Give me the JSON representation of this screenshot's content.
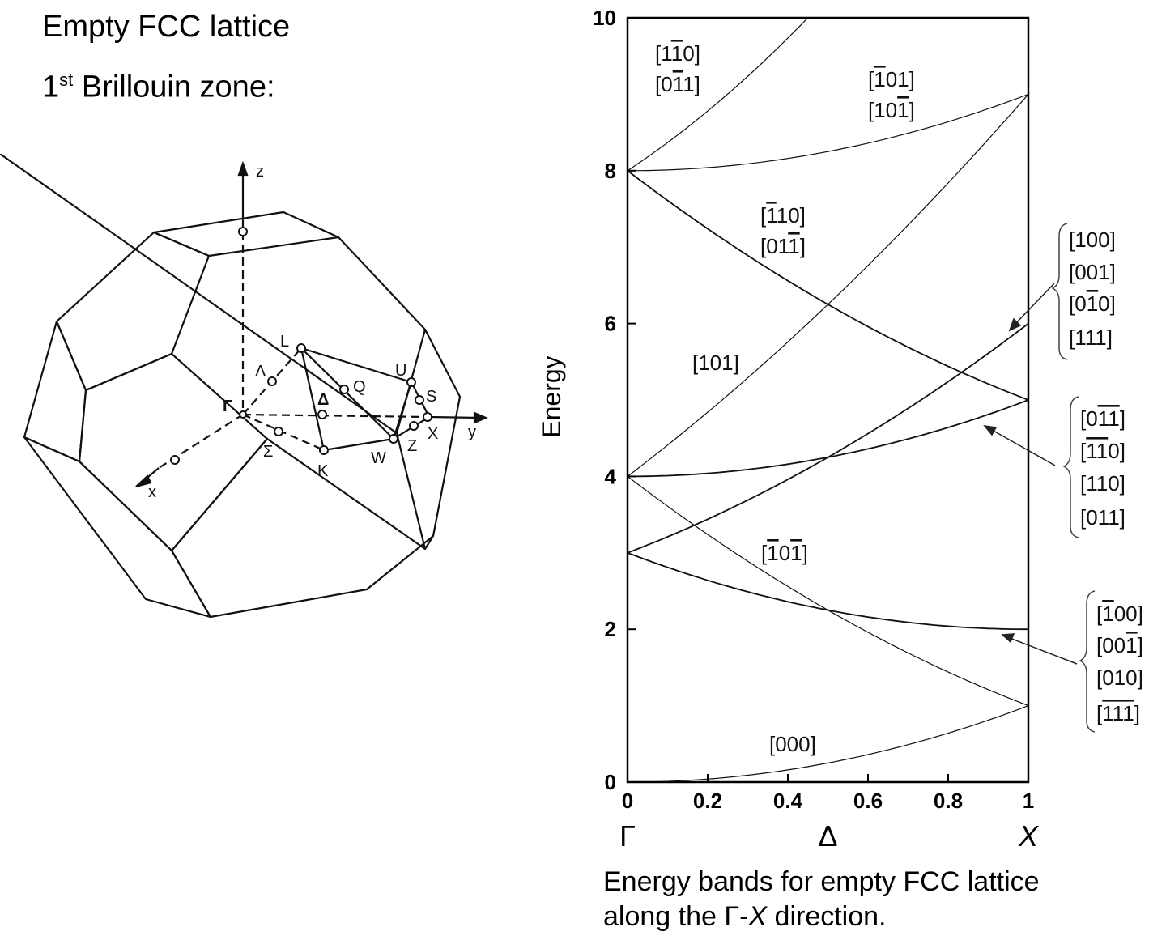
{
  "header": {
    "title": "Empty FCC lattice",
    "subtitle_prefix": "1",
    "subtitle_sup": "st",
    "subtitle_rest": " Brillouin zone:"
  },
  "bz_labels": {
    "z": "z",
    "y": "y",
    "x": "x",
    "gamma": "Γ",
    "lambda": "Λ",
    "L": "L",
    "delta": "Δ",
    "Q": "Q",
    "U": "U",
    "S": "S",
    "X": "X",
    "Z": "Z",
    "W": "W",
    "K": "K",
    "sigma": "Σ"
  },
  "chart_data": {
    "type": "line",
    "title": "",
    "xlabel": "",
    "ylabel": "Energy",
    "xlim": [
      0,
      1
    ],
    "ylim": [
      0,
      10
    ],
    "x_ticks": [
      "0",
      "0.2",
      "0.4",
      "0.6",
      "0.8",
      "1"
    ],
    "y_ticks": [
      "0",
      "2",
      "4",
      "6",
      "8",
      "10"
    ],
    "k_points": [
      {
        "label": "Γ",
        "x": 0
      },
      {
        "label": "Δ",
        "x": 0.5
      },
      {
        "label": "X",
        "x": 1
      }
    ],
    "series": [
      {
        "name": "[000]",
        "points": [
          [
            0,
            0
          ],
          [
            0.2,
            0.04
          ],
          [
            0.4,
            0.16
          ],
          [
            0.6,
            0.36
          ],
          [
            0.8,
            0.64
          ],
          [
            1,
            1
          ]
        ]
      },
      {
        "name": "[-10-1]",
        "points": [
          [
            0,
            4
          ],
          [
            0.5,
            2.25
          ],
          [
            1,
            1
          ]
        ]
      },
      {
        "name": "[-100],[00-1],[010],[-1-1-1]",
        "points": [
          [
            0,
            3
          ],
          [
            0.5,
            2.25
          ],
          [
            1,
            2
          ]
        ]
      },
      {
        "name": "[0-1-1],[-1-10],[110],[011]",
        "points": [
          [
            0,
            4
          ],
          [
            0.5,
            4.25
          ],
          [
            1,
            5
          ]
        ]
      },
      {
        "name": "[100],[001],[0-10],[111]",
        "points": [
          [
            0,
            3
          ],
          [
            0.5,
            4.25
          ],
          [
            1,
            6
          ]
        ]
      },
      {
        "name": "[101]",
        "points": [
          [
            0,
            4
          ],
          [
            0.5,
            6.25
          ],
          [
            1,
            9
          ]
        ]
      },
      {
        "name": "[-110],[01-1]",
        "points": [
          [
            0,
            8
          ],
          [
            0.5,
            6.25
          ],
          [
            1,
            5
          ]
        ]
      },
      {
        "name": "[-101],[10-1]",
        "points": [
          [
            0,
            8
          ],
          [
            0.5,
            8.25
          ],
          [
            1,
            9
          ]
        ]
      },
      {
        "name": "[1-10],[0-11]",
        "points": [
          [
            0,
            8
          ],
          [
            0.45,
            10
          ]
        ]
      }
    ],
    "labels": {
      "l000": "[000]",
      "l101": "[101]",
      "lA1": "[1",
      "lA2": "1",
      "lA3": "0]",
      "lB1": "[0",
      "lB2": "1",
      "lB3": "1]",
      "lC1": "[",
      "lC2": "1",
      "lC3": "01]",
      "lD1": "[10",
      "lD2": "1",
      "lD3": "]",
      "lE1": "[",
      "lE2": "1",
      "lE3": "10]",
      "lF1": "[01",
      "lF2": "1",
      "lF3": "]",
      "lG1": "[",
      "lG2": "1",
      "lG3": "0",
      "lG4": "1",
      "lG5": "]",
      "g1a": "[100]",
      "g1b": "[001]",
      "g1c1": "[0",
      "g1c2": "1",
      "g1c3": "0]",
      "g1d": "[111]",
      "g2a1": "[0",
      "g2a2": "11",
      "g2a3": "]",
      "g2b1": "[",
      "g2b2": "11",
      "g2b3": "0]",
      "g2c": "[110]",
      "g2d": "[011]",
      "g3a1": "[",
      "g3a2": "1",
      "g3a3": "00]",
      "g3b1": "[00",
      "g3b2": "1",
      "g3b3": "]",
      "g3c": "[010]",
      "g3d1": "[",
      "g3d2": "111",
      "g3d3": "]"
    }
  },
  "caption": {
    "line1": "Energy bands for empty FCC lattice",
    "line2_a": "along the Γ-",
    "line2_x": "X",
    "line2_b": " direction."
  }
}
